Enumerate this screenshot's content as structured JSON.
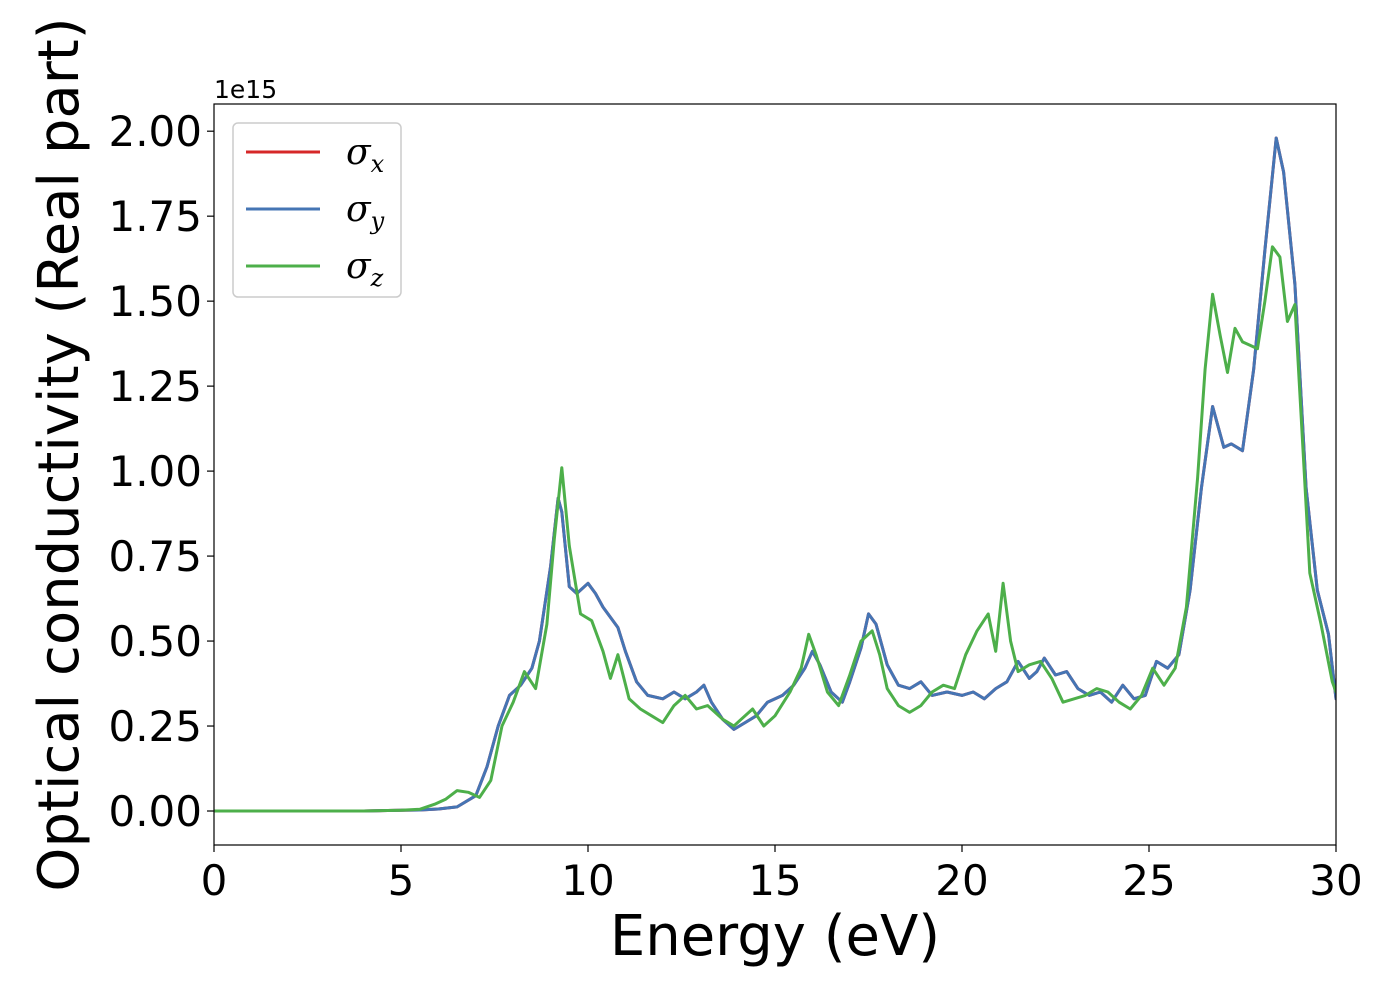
{
  "chart_data": {
    "type": "line",
    "title": "",
    "xlabel": "Energy (eV)",
    "ylabel": "Optical conductivity (Real part)",
    "y_offset_label": "1e15",
    "y_scale": 1000000000000000.0,
    "xlim": [
      0,
      30
    ],
    "ylim": [
      -0.1,
      2.08
    ],
    "x_ticks": [
      0,
      5,
      10,
      15,
      20,
      25,
      30
    ],
    "y_ticks": [
      0.0,
      0.25,
      0.5,
      0.75,
      1.0,
      1.25,
      1.5,
      1.75,
      2.0
    ],
    "x_tick_labels": [
      "0",
      "5",
      "10",
      "15",
      "20",
      "25",
      "30"
    ],
    "y_tick_labels": [
      "0.00",
      "0.25",
      "0.50",
      "0.75",
      "1.00",
      "1.25",
      "1.50",
      "1.75",
      "2.00"
    ],
    "grid": false,
    "legend_position": "top-left",
    "series": [
      {
        "name": "σx",
        "symbol": "σ",
        "subscript": "x",
        "color": "#d62728",
        "x": [
          0,
          4,
          5,
          5.5,
          6,
          6.5,
          7,
          7.3,
          7.6,
          7.9,
          8.2,
          8.5,
          8.7,
          9.0,
          9.2,
          9.3,
          9.5,
          9.7,
          10.0,
          10.2,
          10.4,
          10.6,
          10.8,
          11.0,
          11.3,
          11.6,
          12.0,
          12.3,
          12.6,
          12.9,
          13.1,
          13.3,
          13.6,
          13.9,
          14.2,
          14.5,
          14.8,
          15.2,
          15.5,
          15.8,
          16.0,
          16.2,
          16.5,
          16.8,
          17.0,
          17.3,
          17.5,
          17.7,
          18.0,
          18.3,
          18.6,
          18.9,
          19.2,
          19.6,
          20.0,
          20.3,
          20.6,
          20.9,
          21.2,
          21.5,
          21.8,
          22.0,
          22.2,
          22.5,
          22.8,
          23.1,
          23.4,
          23.7,
          24.0,
          24.3,
          24.6,
          24.9,
          25.2,
          25.5,
          25.8,
          26.1,
          26.4,
          26.7,
          27.0,
          27.2,
          27.5,
          27.8,
          28.1,
          28.4,
          28.6,
          28.9,
          29.2,
          29.5,
          29.8,
          30
        ],
        "y": [
          0.0,
          0.0,
          0.002,
          0.003,
          0.006,
          0.012,
          0.045,
          0.13,
          0.25,
          0.34,
          0.37,
          0.42,
          0.5,
          0.72,
          0.92,
          0.88,
          0.66,
          0.64,
          0.67,
          0.64,
          0.6,
          0.57,
          0.54,
          0.47,
          0.38,
          0.34,
          0.33,
          0.35,
          0.33,
          0.35,
          0.37,
          0.32,
          0.27,
          0.24,
          0.26,
          0.28,
          0.32,
          0.34,
          0.37,
          0.42,
          0.47,
          0.43,
          0.35,
          0.32,
          0.38,
          0.48,
          0.58,
          0.55,
          0.43,
          0.37,
          0.36,
          0.38,
          0.34,
          0.35,
          0.34,
          0.35,
          0.33,
          0.36,
          0.38,
          0.44,
          0.39,
          0.41,
          0.45,
          0.4,
          0.41,
          0.36,
          0.34,
          0.35,
          0.32,
          0.37,
          0.33,
          0.34,
          0.44,
          0.42,
          0.46,
          0.65,
          0.95,
          1.19,
          1.07,
          1.08,
          1.06,
          1.3,
          1.65,
          1.98,
          1.88,
          1.55,
          0.95,
          0.65,
          0.52,
          0.33
        ]
      },
      {
        "name": "σy",
        "symbol": "σ",
        "subscript": "y",
        "color": "#4575b4",
        "x": [
          0,
          4,
          5,
          5.5,
          6,
          6.5,
          7,
          7.3,
          7.6,
          7.9,
          8.2,
          8.5,
          8.7,
          9.0,
          9.2,
          9.3,
          9.5,
          9.7,
          10.0,
          10.2,
          10.4,
          10.6,
          10.8,
          11.0,
          11.3,
          11.6,
          12.0,
          12.3,
          12.6,
          12.9,
          13.1,
          13.3,
          13.6,
          13.9,
          14.2,
          14.5,
          14.8,
          15.2,
          15.5,
          15.8,
          16.0,
          16.2,
          16.5,
          16.8,
          17.0,
          17.3,
          17.5,
          17.7,
          18.0,
          18.3,
          18.6,
          18.9,
          19.2,
          19.6,
          20.0,
          20.3,
          20.6,
          20.9,
          21.2,
          21.5,
          21.8,
          22.0,
          22.2,
          22.5,
          22.8,
          23.1,
          23.4,
          23.7,
          24.0,
          24.3,
          24.6,
          24.9,
          25.2,
          25.5,
          25.8,
          26.1,
          26.4,
          26.7,
          27.0,
          27.2,
          27.5,
          27.8,
          28.1,
          28.4,
          28.6,
          28.9,
          29.2,
          29.5,
          29.8,
          30
        ],
        "y": [
          0.0,
          0.0,
          0.002,
          0.003,
          0.006,
          0.012,
          0.045,
          0.13,
          0.25,
          0.34,
          0.37,
          0.42,
          0.5,
          0.72,
          0.92,
          0.88,
          0.66,
          0.64,
          0.67,
          0.64,
          0.6,
          0.57,
          0.54,
          0.47,
          0.38,
          0.34,
          0.33,
          0.35,
          0.33,
          0.35,
          0.37,
          0.32,
          0.27,
          0.24,
          0.26,
          0.28,
          0.32,
          0.34,
          0.37,
          0.42,
          0.47,
          0.43,
          0.35,
          0.32,
          0.38,
          0.48,
          0.58,
          0.55,
          0.43,
          0.37,
          0.36,
          0.38,
          0.34,
          0.35,
          0.34,
          0.35,
          0.33,
          0.36,
          0.38,
          0.44,
          0.39,
          0.41,
          0.45,
          0.4,
          0.41,
          0.36,
          0.34,
          0.35,
          0.32,
          0.37,
          0.33,
          0.34,
          0.44,
          0.42,
          0.46,
          0.65,
          0.95,
          1.19,
          1.07,
          1.08,
          1.06,
          1.3,
          1.65,
          1.98,
          1.88,
          1.55,
          0.95,
          0.65,
          0.52,
          0.33
        ]
      },
      {
        "name": "σz",
        "symbol": "σ",
        "subscript": "z",
        "color": "#4daf4a",
        "x": [
          0,
          4,
          5,
          5.5,
          5.9,
          6.2,
          6.5,
          6.8,
          7.1,
          7.4,
          7.7,
          8.0,
          8.3,
          8.6,
          8.9,
          9.1,
          9.3,
          9.5,
          9.8,
          10.1,
          10.4,
          10.6,
          10.8,
          11.1,
          11.4,
          11.7,
          12.0,
          12.3,
          12.6,
          12.9,
          13.2,
          13.6,
          13.9,
          14.1,
          14.4,
          14.7,
          15.0,
          15.4,
          15.7,
          15.9,
          16.1,
          16.4,
          16.7,
          17.0,
          17.3,
          17.6,
          17.8,
          18.0,
          18.3,
          18.6,
          18.9,
          19.2,
          19.5,
          19.8,
          20.1,
          20.4,
          20.7,
          20.9,
          21.1,
          21.3,
          21.5,
          21.8,
          22.1,
          22.4,
          22.7,
          23.0,
          23.3,
          23.6,
          23.9,
          24.2,
          24.5,
          24.8,
          25.1,
          25.4,
          25.7,
          26.0,
          26.3,
          26.5,
          26.7,
          26.9,
          27.1,
          27.3,
          27.5,
          27.7,
          27.9,
          28.1,
          28.3,
          28.5,
          28.7,
          28.9,
          29.1,
          29.3,
          29.6,
          29.9,
          30
        ],
        "y": [
          0.0,
          0.0,
          0.002,
          0.005,
          0.02,
          0.035,
          0.06,
          0.055,
          0.04,
          0.09,
          0.25,
          0.32,
          0.41,
          0.36,
          0.55,
          0.8,
          1.01,
          0.78,
          0.58,
          0.56,
          0.47,
          0.39,
          0.46,
          0.33,
          0.3,
          0.28,
          0.26,
          0.31,
          0.34,
          0.3,
          0.31,
          0.27,
          0.25,
          0.27,
          0.3,
          0.25,
          0.28,
          0.35,
          0.42,
          0.52,
          0.46,
          0.35,
          0.31,
          0.4,
          0.5,
          0.53,
          0.46,
          0.36,
          0.31,
          0.29,
          0.31,
          0.35,
          0.37,
          0.36,
          0.46,
          0.53,
          0.58,
          0.47,
          0.67,
          0.5,
          0.41,
          0.43,
          0.44,
          0.39,
          0.32,
          0.33,
          0.34,
          0.36,
          0.35,
          0.32,
          0.3,
          0.34,
          0.42,
          0.37,
          0.42,
          0.6,
          0.98,
          1.3,
          1.52,
          1.4,
          1.29,
          1.42,
          1.38,
          1.37,
          1.36,
          1.5,
          1.66,
          1.63,
          1.44,
          1.49,
          1.1,
          0.7,
          0.55,
          0.38,
          0.35
        ]
      }
    ]
  }
}
